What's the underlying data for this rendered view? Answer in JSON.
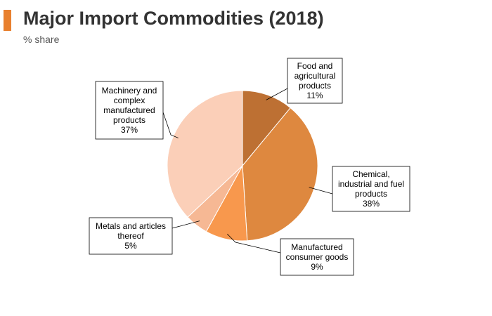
{
  "header": {
    "title": "Major Import Commodities (2018)",
    "subtitle": "% share",
    "accent_color": "#E8802E"
  },
  "chart_data": {
    "type": "pie",
    "title": "Major Import Commodities (2018)",
    "subtitle": "% share",
    "start": "12 o'clock",
    "direction": "clockwise",
    "slices": [
      {
        "name": "Food and agricultural products",
        "value": 11,
        "value_label": "11%",
        "color": "#BD7033",
        "label_lines": [
          "Food and",
          "agricultural",
          "products"
        ]
      },
      {
        "name": "Chemical, industrial and fuel products",
        "value": 38,
        "value_label": "38%",
        "color": "#DE883F",
        "label_lines": [
          "Chemical,",
          "industrial and fuel",
          "products"
        ]
      },
      {
        "name": "Manufactured consumer goods",
        "value": 9,
        "value_label": "9%",
        "color": "#F8984D",
        "label_lines": [
          "Manufactured",
          "consumer goods"
        ]
      },
      {
        "name": "Metals and articles thereof",
        "value": 5,
        "value_label": "5%",
        "color": "#F6B894",
        "label_lines": [
          "Metals and articles",
          "thereof"
        ]
      },
      {
        "name": "Machinery and complex manufactured products",
        "value": 37,
        "value_label": "37%",
        "color": "#FBCFB8",
        "label_lines": [
          "Machinery and",
          "complex",
          "manufactured",
          "products"
        ]
      }
    ]
  }
}
